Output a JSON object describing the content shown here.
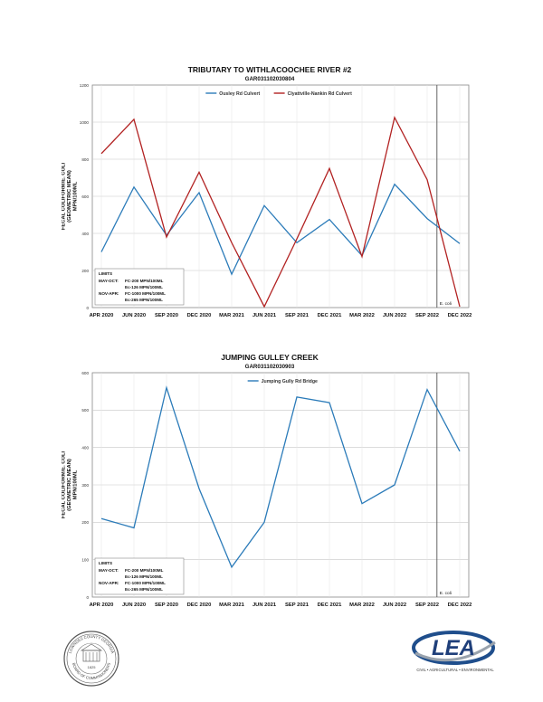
{
  "chart_data": [
    {
      "type": "line",
      "title": "TRIBUTARY TO WITHLACOOCHEE RIVER #2",
      "subtitle": "GAR031102030804",
      "ylabel": "FECAL COLIFORM/E. COLI (GEOMETRIC MEAN) MPN/100ML",
      "ylim": [
        0,
        1200
      ],
      "yticks": [
        "0",
        "200",
        "400",
        "600",
        "800",
        "1000",
        "1200"
      ],
      "categories": [
        "APR 2020",
        "JUN 2020",
        "SEP 2020",
        "DEC 2020",
        "MAR 2021",
        "JUN 2021",
        "SEP 2021",
        "DEC 2021",
        "MAR 2022",
        "JUN 2022",
        "SEP 2022",
        "DEC 2022"
      ],
      "grid": true,
      "legend_position": "top",
      "series": [
        {
          "name": "Ousley Rd Culvert",
          "color": "#2b7bb9",
          "values": [
            300,
            650,
            390,
            620,
            180,
            550,
            350,
            475,
            280,
            665,
            480,
            345
          ]
        },
        {
          "name": "Clyattville-Nankin Rd Culvert",
          "color": "#b22222",
          "values": [
            830,
            1015,
            380,
            730,
            350,
            5,
            370,
            750,
            275,
            1025,
            690,
            5
          ]
        }
      ],
      "marker": {
        "category_index": 10.3,
        "label": "E. coli"
      },
      "limits": {
        "header": "LIMITS",
        "rows": [
          {
            "season": "MAY-OCT:",
            "text": "FC-200 MPN/100ML"
          },
          {
            "season": "",
            "text": "Ec-126 MPN/100ML"
          },
          {
            "season": "NOV-APR:",
            "text": "FC-1000 MPN/100ML"
          },
          {
            "season": "",
            "text": "Ec-265 MPN/100ML"
          }
        ]
      }
    },
    {
      "type": "line",
      "title": "JUMPING GULLEY CREEK",
      "subtitle": "GAR031102030903",
      "ylabel": "FECAL COLIFORM/E. COLI (GEOMETRIC MEAN) MPN/100ML",
      "ylim": [
        0,
        600
      ],
      "yticks": [
        "0",
        "100",
        "200",
        "300",
        "400",
        "500",
        "600"
      ],
      "categories": [
        "APR 2020",
        "JUN 2020",
        "SEP 2020",
        "DEC 2020",
        "MAR 2021",
        "JUN 2021",
        "SEP 2021",
        "DEC 2021",
        "MAR 2022",
        "JUN 2022",
        "SEP 2022",
        "DEC 2022"
      ],
      "grid": true,
      "legend_position": "top",
      "series": [
        {
          "name": "Jumping Gully Rd Bridge",
          "color": "#2b7bb9",
          "values": [
            210,
            185,
            560,
            290,
            80,
            200,
            535,
            520,
            250,
            300,
            555,
            390
          ]
        }
      ],
      "marker": {
        "category_index": 10.3,
        "label": "E. coli"
      },
      "limits": {
        "header": "LIMITS",
        "rows": [
          {
            "season": "MAY-OCT:",
            "text": "FC-200 MPN/100ML"
          },
          {
            "season": "",
            "text": "Ec-126 MPN/100ML"
          },
          {
            "season": "NOV-APR:",
            "text": "FC-1000 MPN/100ML"
          },
          {
            "season": "",
            "text": "Ec-265 MPN/100ML"
          }
        ]
      }
    }
  ],
  "footer": {
    "seal": {
      "icon": "county-seal-icon",
      "text_top": "LOWNDES COUNTY GEORGIA",
      "text_bottom": "BOARD OF COMMISSIONERS",
      "year": "1825"
    },
    "logo": {
      "icon": "lea-logo-icon",
      "text": "LEA",
      "tagline": "CIVIL • AGRICULTURAL • ENVIRONMENTAL"
    }
  }
}
